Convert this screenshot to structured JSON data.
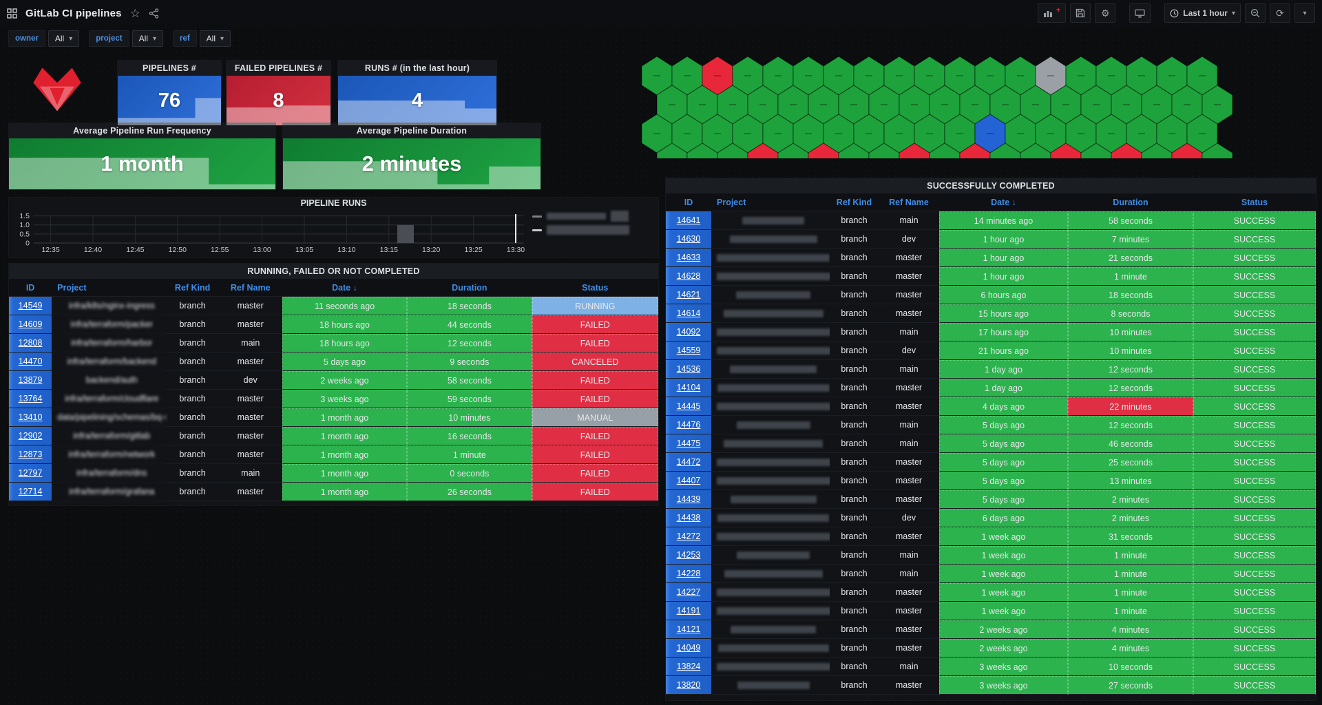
{
  "nav": {
    "title": "GitLab CI pipelines",
    "time_range": "Last 1 hour",
    "icons_left": [
      "apps-grid-icon",
      "star-icon",
      "share-icon"
    ],
    "icons_right": [
      "add-panel-icon",
      "save-icon",
      "gear-icon",
      "tv-icon",
      "clock-icon",
      "zoom-out-icon",
      "refresh-icon",
      "chevron-down-icon"
    ]
  },
  "filters": [
    {
      "label": "owner",
      "value": "All"
    },
    {
      "label": "project",
      "value": "All"
    },
    {
      "label": "ref",
      "value": "All"
    }
  ],
  "stats": [
    {
      "title": "PIPELINES #",
      "value": "76",
      "color": "blue",
      "sparkline": [
        0.15,
        0.15,
        0.15,
        0.55
      ]
    },
    {
      "title": "FAILED PIPELINES #",
      "value": "8",
      "color": "red",
      "sparkline": [
        0.36,
        0.36,
        0.4,
        0.4
      ]
    },
    {
      "title": "RUNS # (in the last hour)",
      "value": "4",
      "color": "blue",
      "sparkline": [
        0.5,
        0.5,
        0.5,
        0.5,
        0.34
      ]
    },
    {
      "title": "Average Pipeline Run Frequency",
      "value": "1 month",
      "color": "green",
      "sparkline": [
        0.62,
        0.62,
        0.62,
        0.1
      ]
    },
    {
      "title": "Average Pipeline Duration",
      "value": "2 minutes",
      "color": "green",
      "sparkline": [
        0.55,
        0.55,
        0.55,
        0.1,
        0.45
      ]
    }
  ],
  "honeycomb": {
    "legend": {
      "g": "#1da23c",
      "R": "#e8273a",
      "B": "#2463d3",
      "G": "#9aa0a5"
    },
    "rows": [
      "ggRggggggggggGggggg",
      "ggggggggggggggggggg",
      "gggggggggggBggggggg",
      "gggRgRggRgRggRgRgRg"
    ]
  },
  "chart_data": {
    "type": "bar",
    "title": "PIPELINE RUNS",
    "x_ticks": [
      "12:35",
      "12:40",
      "12:45",
      "12:50",
      "12:55",
      "13:00",
      "13:05",
      "13:10",
      "13:15",
      "13:20",
      "13:25",
      "13:30"
    ],
    "y_ticks": [
      "1.5",
      "1.0",
      "0.5",
      "0"
    ],
    "ylim": [
      0,
      1.75
    ],
    "xrange_minutes": [
      "12:33",
      "13:30"
    ],
    "bars": [
      {
        "x": "13:16",
        "value": 1.0,
        "color": "#4a4e54"
      }
    ],
    "current_time_marker": "13:30",
    "grid": true,
    "legend_position": "right",
    "legend": [
      {
        "label": "(redacted)",
        "dash_color": "#7b8087"
      },
      {
        "label": "(redacted)",
        "dash_color": "#c9ccd0"
      }
    ]
  },
  "left_table": {
    "title": "RUNNING, FAILED OR NOT COMPLETED",
    "headers": [
      "ID",
      "Project",
      "Ref Kind",
      "Ref Name",
      "Date ↓",
      "Duration",
      "Status"
    ],
    "rows": [
      {
        "id": "14549",
        "project": "infra/k8s/nginx-ingress",
        "ref_kind": "branch",
        "ref_name": "master",
        "date": "11 seconds ago",
        "duration": "18 seconds",
        "status": "RUNNING"
      },
      {
        "id": "14609",
        "project": "infra/terraform/packer",
        "ref_kind": "branch",
        "ref_name": "master",
        "date": "18 hours ago",
        "duration": "44 seconds",
        "status": "FAILED"
      },
      {
        "id": "12808",
        "project": "infra/terraform/harbor",
        "ref_kind": "branch",
        "ref_name": "main",
        "date": "18 hours ago",
        "duration": "12 seconds",
        "status": "FAILED"
      },
      {
        "id": "14470",
        "project": "infra/terraform/backend",
        "ref_kind": "branch",
        "ref_name": "master",
        "date": "5 days ago",
        "duration": "9 seconds",
        "status": "CANCELED"
      },
      {
        "id": "13879",
        "project": "backend/auth",
        "ref_kind": "branch",
        "ref_name": "dev",
        "date": "2 weeks ago",
        "duration": "58 seconds",
        "status": "FAILED"
      },
      {
        "id": "13764",
        "project": "infra/terraform/cloudflare",
        "ref_kind": "branch",
        "ref_name": "master",
        "date": "3 weeks ago",
        "duration": "59 seconds",
        "status": "FAILED"
      },
      {
        "id": "13410",
        "project": "data/pipelining/schemas/bq-st...",
        "ref_kind": "branch",
        "ref_name": "master",
        "date": "1 month ago",
        "duration": "10 minutes",
        "status": "MANUAL"
      },
      {
        "id": "12902",
        "project": "infra/terraform/gitlab",
        "ref_kind": "branch",
        "ref_name": "master",
        "date": "1 month ago",
        "duration": "16 seconds",
        "status": "FAILED"
      },
      {
        "id": "12873",
        "project": "infra/terraform/network",
        "ref_kind": "branch",
        "ref_name": "master",
        "date": "1 month ago",
        "duration": "1 minute",
        "status": "FAILED"
      },
      {
        "id": "12797",
        "project": "infra/terraform/dns",
        "ref_kind": "branch",
        "ref_name": "main",
        "date": "1 month ago",
        "duration": "0 seconds",
        "status": "FAILED"
      },
      {
        "id": "12714",
        "project": "infra/terraform/grafana",
        "ref_kind": "branch",
        "ref_name": "master",
        "date": "1 month ago",
        "duration": "26 seconds",
        "status": "FAILED"
      }
    ]
  },
  "right_table": {
    "title": "SUCCESSFULLY COMPLETED",
    "headers": [
      "ID",
      "Project",
      "Ref Kind",
      "Ref Name",
      "Date ↓",
      "Duration",
      "Status"
    ],
    "rows": [
      {
        "id": "14641",
        "project_redacted": true,
        "ref_kind": "branch",
        "ref_name": "main",
        "date": "14 minutes ago",
        "duration": "58 seconds",
        "status": "SUCCESS"
      },
      {
        "id": "14630",
        "project_redacted": true,
        "ref_kind": "branch",
        "ref_name": "dev",
        "date": "1 hour ago",
        "duration": "7 minutes",
        "status": "SUCCESS"
      },
      {
        "id": "14633",
        "project_redacted": true,
        "ref_kind": "branch",
        "ref_name": "master",
        "date": "1 hour ago",
        "duration": "21 seconds",
        "status": "SUCCESS"
      },
      {
        "id": "14628",
        "project_redacted": true,
        "ref_kind": "branch",
        "ref_name": "master",
        "date": "1 hour ago",
        "duration": "1 minute",
        "status": "SUCCESS"
      },
      {
        "id": "14621",
        "project_redacted": true,
        "ref_kind": "branch",
        "ref_name": "master",
        "date": "6 hours ago",
        "duration": "18 seconds",
        "status": "SUCCESS"
      },
      {
        "id": "14614",
        "project_redacted": true,
        "ref_kind": "branch",
        "ref_name": "master",
        "date": "15 hours ago",
        "duration": "8 seconds",
        "status": "SUCCESS"
      },
      {
        "id": "14092",
        "project_redacted": true,
        "ref_kind": "branch",
        "ref_name": "main",
        "date": "17 hours ago",
        "duration": "10 minutes",
        "status": "SUCCESS"
      },
      {
        "id": "14559",
        "project_redacted": true,
        "ref_kind": "branch",
        "ref_name": "dev",
        "date": "21 hours ago",
        "duration": "10 minutes",
        "status": "SUCCESS"
      },
      {
        "id": "14536",
        "project_redacted": true,
        "ref_kind": "branch",
        "ref_name": "main",
        "date": "1 day ago",
        "duration": "12 seconds",
        "status": "SUCCESS"
      },
      {
        "id": "14104",
        "project_redacted": true,
        "ref_kind": "branch",
        "ref_name": "master",
        "date": "1 day ago",
        "duration": "12 seconds",
        "status": "SUCCESS"
      },
      {
        "id": "14445",
        "project_redacted": true,
        "ref_kind": "branch",
        "ref_name": "master",
        "date": "4 days ago",
        "duration": "22 minutes",
        "status": "SUCCESS",
        "duration_alert": true
      },
      {
        "id": "14476",
        "project_redacted": true,
        "ref_kind": "branch",
        "ref_name": "main",
        "date": "5 days ago",
        "duration": "12 seconds",
        "status": "SUCCESS"
      },
      {
        "id": "14475",
        "project_redacted": true,
        "ref_kind": "branch",
        "ref_name": "main",
        "date": "5 days ago",
        "duration": "46 seconds",
        "status": "SUCCESS"
      },
      {
        "id": "14472",
        "project_redacted": true,
        "ref_kind": "branch",
        "ref_name": "master",
        "date": "5 days ago",
        "duration": "25 seconds",
        "status": "SUCCESS"
      },
      {
        "id": "14407",
        "project_redacted": true,
        "ref_kind": "branch",
        "ref_name": "master",
        "date": "5 days ago",
        "duration": "13 minutes",
        "status": "SUCCESS"
      },
      {
        "id": "14439",
        "project_redacted": true,
        "ref_kind": "branch",
        "ref_name": "master",
        "date": "5 days ago",
        "duration": "2 minutes",
        "status": "SUCCESS"
      },
      {
        "id": "14438",
        "project_redacted": true,
        "ref_kind": "branch",
        "ref_name": "dev",
        "date": "6 days ago",
        "duration": "2 minutes",
        "status": "SUCCESS"
      },
      {
        "id": "14272",
        "project_redacted": true,
        "ref_kind": "branch",
        "ref_name": "master",
        "date": "1 week ago",
        "duration": "31 seconds",
        "status": "SUCCESS"
      },
      {
        "id": "14253",
        "project_redacted": true,
        "ref_kind": "branch",
        "ref_name": "main",
        "date": "1 week ago",
        "duration": "1 minute",
        "status": "SUCCESS"
      },
      {
        "id": "14228",
        "project_redacted": true,
        "ref_kind": "branch",
        "ref_name": "main",
        "date": "1 week ago",
        "duration": "1 minute",
        "status": "SUCCESS"
      },
      {
        "id": "14227",
        "project_redacted": true,
        "ref_kind": "branch",
        "ref_name": "master",
        "date": "1 week ago",
        "duration": "1 minute",
        "status": "SUCCESS"
      },
      {
        "id": "14191",
        "project_redacted": true,
        "ref_kind": "branch",
        "ref_name": "master",
        "date": "1 week ago",
        "duration": "1 minute",
        "status": "SUCCESS"
      },
      {
        "id": "14121",
        "project_redacted": true,
        "ref_kind": "branch",
        "ref_name": "master",
        "date": "2 weeks ago",
        "duration": "4 minutes",
        "status": "SUCCESS"
      },
      {
        "id": "14049",
        "project_redacted": true,
        "ref_kind": "branch",
        "ref_name": "master",
        "date": "2 weeks ago",
        "duration": "4 minutes",
        "status": "SUCCESS"
      },
      {
        "id": "13824",
        "project_redacted": true,
        "ref_kind": "branch",
        "ref_name": "main",
        "date": "3 weeks ago",
        "duration": "10 seconds",
        "status": "SUCCESS"
      },
      {
        "id": "13820",
        "project_redacted": true,
        "ref_kind": "branch",
        "ref_name": "master",
        "date": "3 weeks ago",
        "duration": "27 seconds",
        "status": "SUCCESS"
      }
    ]
  },
  "colors": {
    "success_green": "#2cb34e",
    "failed_red": "#e02f44",
    "running_blue": "#7eb2e6",
    "manual_gray": "#97a0a7",
    "id_blue": "#2264cf",
    "header_blue": "#3f8de8",
    "stat_blue": "#2f6fd9",
    "stat_red": "#c9243a",
    "stat_green": "#1fa344"
  }
}
